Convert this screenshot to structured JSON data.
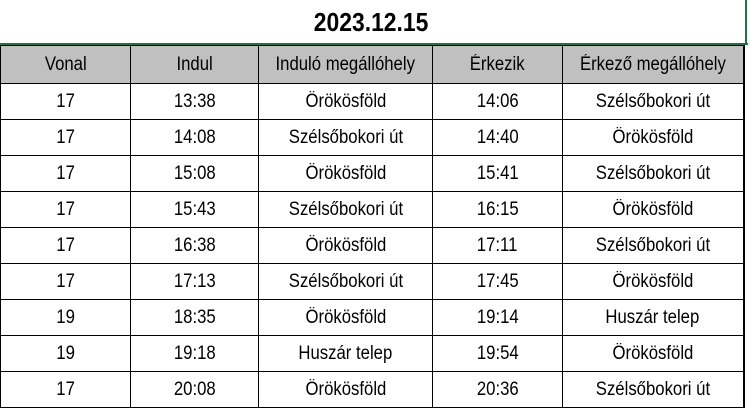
{
  "title": "2023.12.15",
  "columns": [
    "Vonal",
    "Indul",
    "Induló megállóhely",
    "Érkezik",
    "Érkező megállóhely"
  ],
  "rows": [
    [
      "17",
      "13:38",
      "Örökösföld",
      "14:06",
      "Szélsőbokori út"
    ],
    [
      "17",
      "14:08",
      "Szélsőbokori út",
      "14:40",
      "Örökösföld"
    ],
    [
      "17",
      "15:08",
      "Örökösföld",
      "15:41",
      "Szélsőbokori út"
    ],
    [
      "17",
      "15:43",
      "Szélsőbokori út",
      "16:15",
      "Örökösföld"
    ],
    [
      "17",
      "16:38",
      "Örökösföld",
      "17:11",
      "Szélsőbokori út"
    ],
    [
      "17",
      "17:13",
      "Szélsőbokori út",
      "17:45",
      "Örökösföld"
    ],
    [
      "19",
      "18:35",
      "Örökösföld",
      "19:14",
      "Huszár telep"
    ],
    [
      "19",
      "19:18",
      "Huszár telep",
      "19:54",
      "Örökösföld"
    ],
    [
      "17",
      "20:08",
      "Örökösföld",
      "20:36",
      "Szélsőbokori út"
    ]
  ],
  "colors": {
    "header_bg": "#c0c0c0",
    "selection": "#217346"
  }
}
